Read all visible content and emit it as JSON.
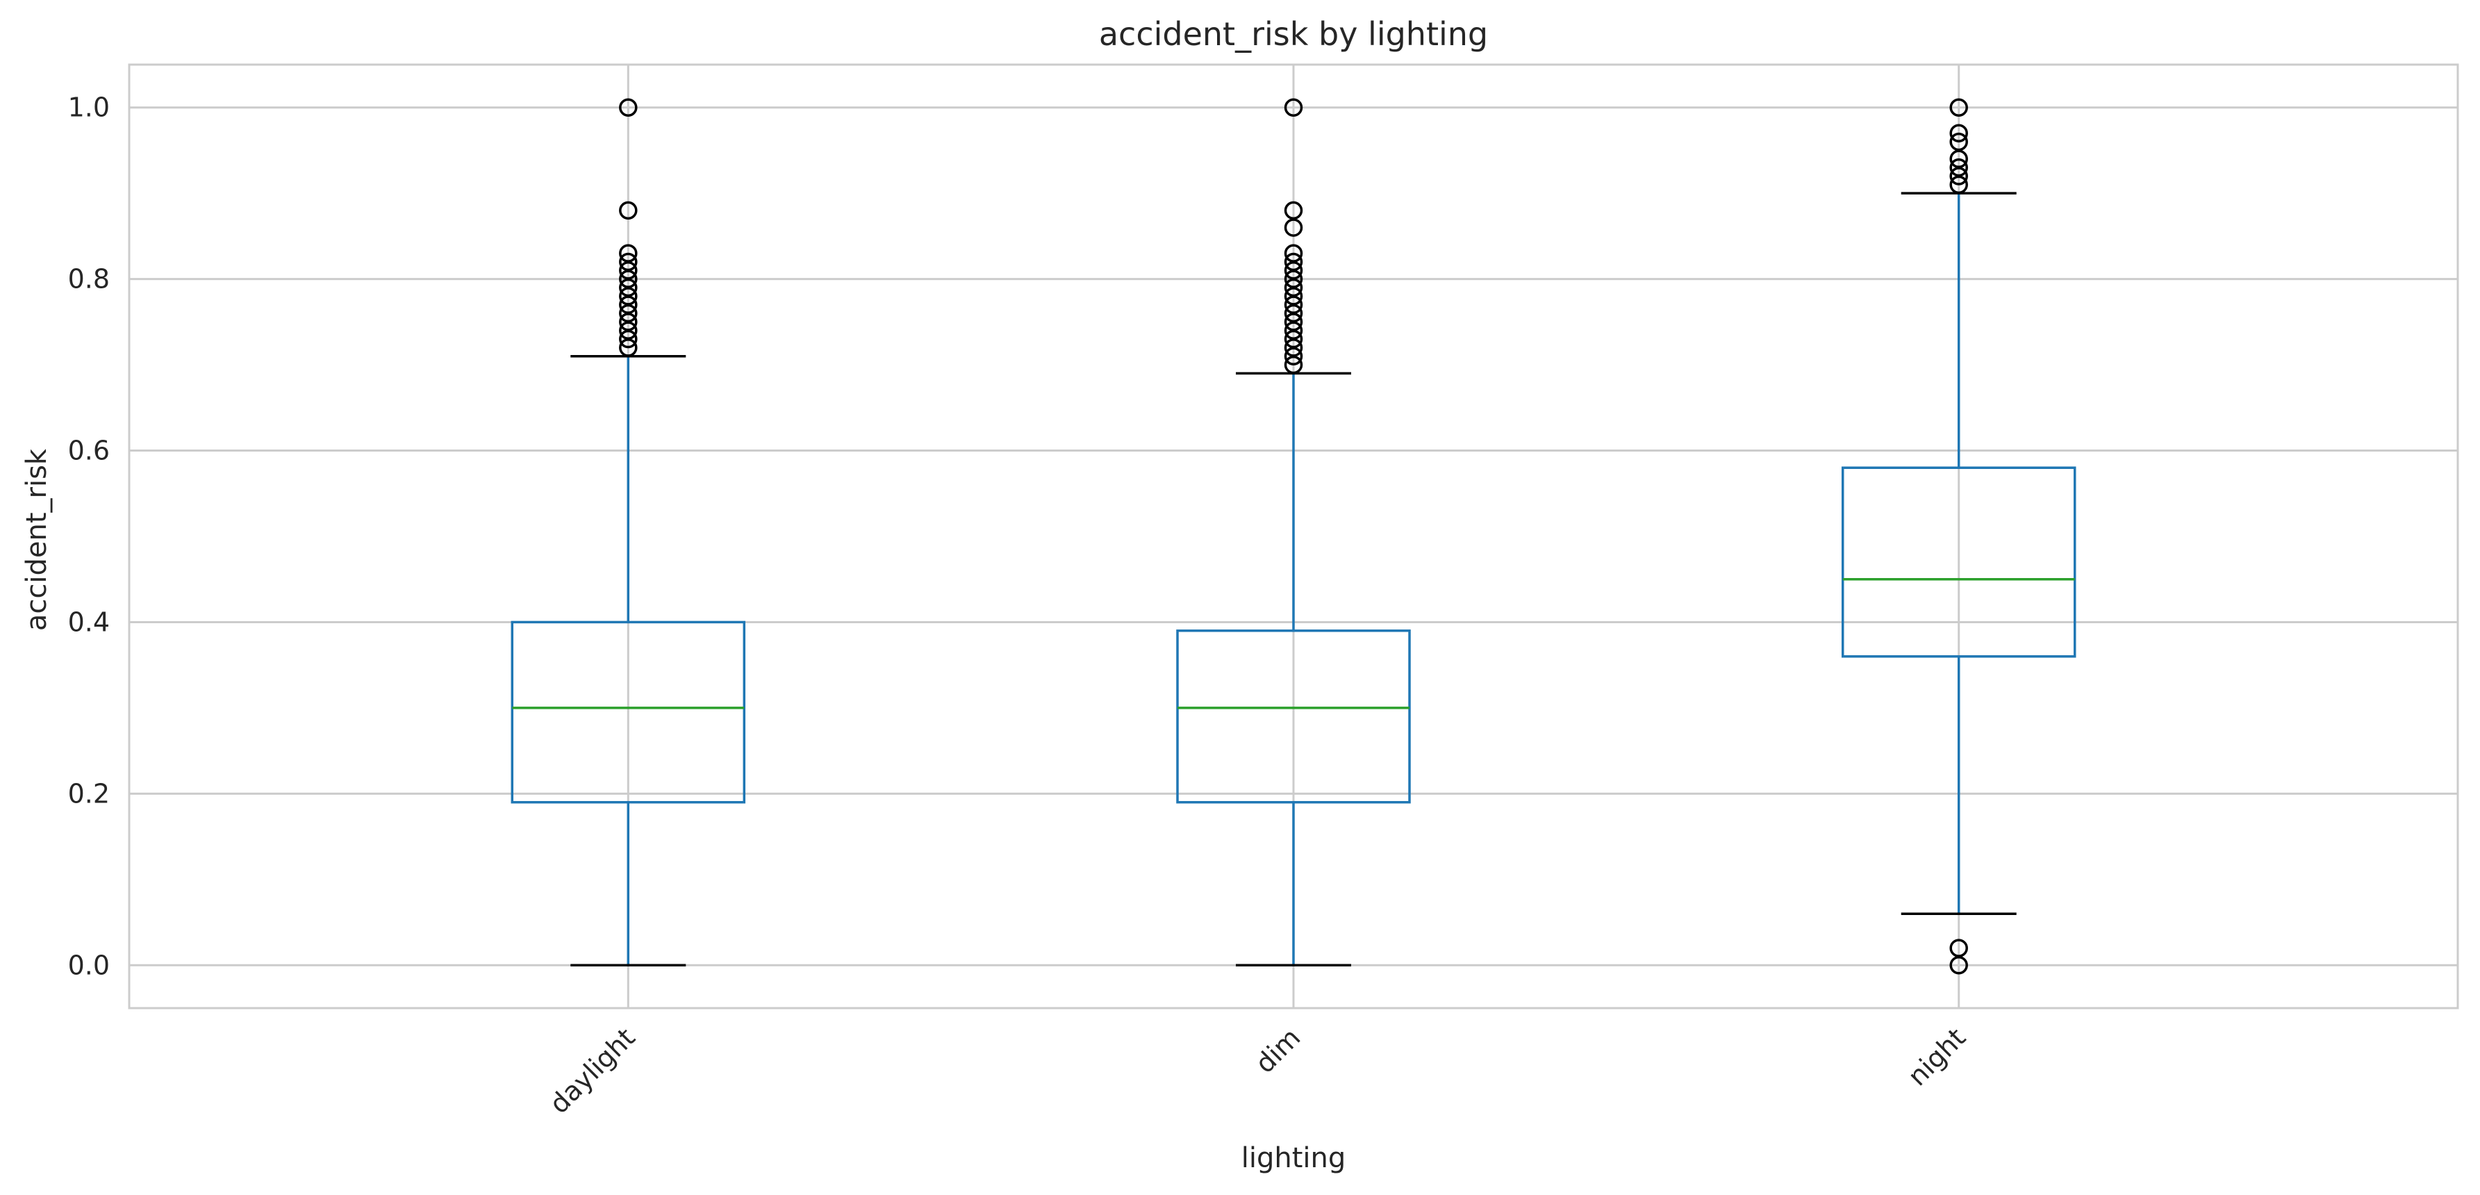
{
  "chart_data": {
    "type": "box",
    "title": "accident_risk by lighting",
    "xlabel": "lighting",
    "ylabel": "accident_risk",
    "ylim": [
      -0.05,
      1.05
    ],
    "yticks": [
      0.0,
      0.2,
      0.4,
      0.6,
      0.8,
      1.0
    ],
    "ytick_labels": [
      "0.0",
      "0.2",
      "0.4",
      "0.6",
      "0.8",
      "1.0"
    ],
    "grid": true,
    "categories": [
      "daylight",
      "dim",
      "night"
    ],
    "boxes": [
      {
        "category": "daylight",
        "whisker_low": 0.0,
        "q1": 0.19,
        "median": 0.3,
        "q3": 0.4,
        "whisker_high": 0.71,
        "outliers": [
          0.72,
          0.73,
          0.74,
          0.75,
          0.76,
          0.77,
          0.78,
          0.79,
          0.8,
          0.81,
          0.82,
          0.83,
          0.88,
          1.0
        ]
      },
      {
        "category": "dim",
        "whisker_low": 0.0,
        "q1": 0.19,
        "median": 0.3,
        "q3": 0.39,
        "whisker_high": 0.69,
        "outliers": [
          0.7,
          0.71,
          0.72,
          0.73,
          0.74,
          0.75,
          0.76,
          0.77,
          0.78,
          0.79,
          0.8,
          0.81,
          0.82,
          0.83,
          0.86,
          0.88,
          1.0
        ]
      },
      {
        "category": "night",
        "whisker_low": 0.06,
        "q1": 0.36,
        "median": 0.45,
        "q3": 0.58,
        "whisker_high": 0.9,
        "outliers": [
          0.0,
          0.02,
          0.91,
          0.92,
          0.93,
          0.94,
          0.96,
          0.97,
          1.0
        ]
      }
    ],
    "colors": {
      "box": "#1f77b4",
      "median": "#2ca02c",
      "whisker_cap": "#000000",
      "outlier": "#000000",
      "grid": "#cccccc",
      "frame": "#cccccc"
    }
  }
}
